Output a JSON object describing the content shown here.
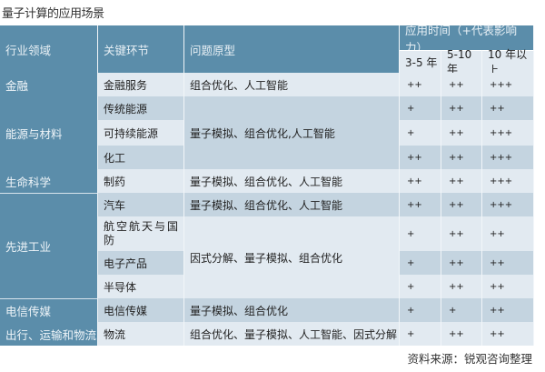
{
  "title": "量子计算的应用场景",
  "header": {
    "industry": "行业领域",
    "segment": "关键环节",
    "problem": "问题原型",
    "timeline": "应用时间（+代表影响力）",
    "periods": [
      "3-5 年",
      "5-10 年",
      "10 年以上"
    ]
  },
  "industries": [
    "金融",
    "能源与材料",
    "生命科学",
    "先进工业",
    "电信传媒",
    "出行、运输和物流"
  ],
  "rows": [
    {
      "segment": "金融服务",
      "problem": "组合优化、人工智能",
      "impact": [
        "++",
        "++",
        "+++"
      ]
    },
    {
      "segment": "传统能源",
      "problem": "量子模拟、组合优化,人工智能",
      "impact": [
        "+",
        "++",
        "++"
      ]
    },
    {
      "segment": "可持续能源",
      "problem": "",
      "impact": [
        "+",
        "++",
        "+++"
      ]
    },
    {
      "segment": "化工",
      "problem": "",
      "impact": [
        "++",
        "++",
        "+++"
      ]
    },
    {
      "segment": "制药",
      "problem": "量子模拟、组合优化、人工智能",
      "impact": [
        "++",
        "++",
        "+++"
      ]
    },
    {
      "segment": "汽车",
      "problem": "量子模拟、组合优化、人工智能",
      "impact": [
        "++",
        "++",
        "+++"
      ]
    },
    {
      "segment": "航空航天与国防",
      "problem": "因式分解、量子模拟、组合优化",
      "impact": [
        "+",
        "++",
        "++"
      ]
    },
    {
      "segment": "电子产品",
      "problem": "",
      "impact": [
        "+",
        "++",
        "++"
      ]
    },
    {
      "segment": "半导体",
      "problem": "",
      "impact": [
        "+",
        "++",
        "++"
      ]
    },
    {
      "segment": "电信传媒",
      "problem": "量子模拟、组合优化",
      "impact": [
        "+",
        "+",
        "++"
      ]
    },
    {
      "segment": "物流",
      "problem": "组合优化、量子模拟、人工智能、因式分解",
      "impact": [
        "+",
        "++",
        "++"
      ]
    }
  ],
  "source": "资料来源：锐观咨询整理",
  "colors": {
    "header": "#5b8daa",
    "row_dark": "#c4d4e0",
    "row_light": "#e2eaf1"
  }
}
